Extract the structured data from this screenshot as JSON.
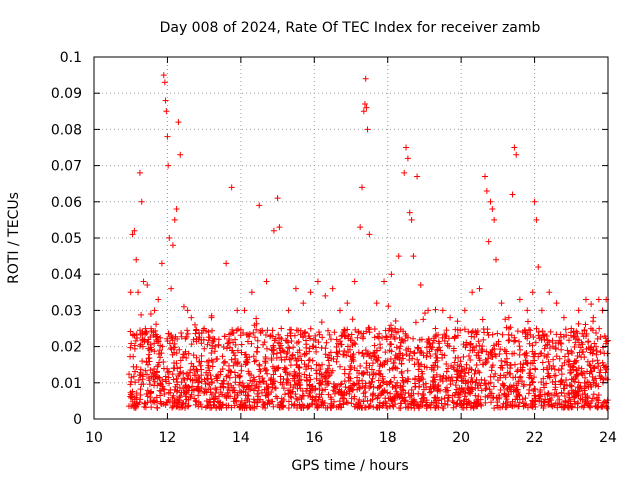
{
  "chart_data": {
    "type": "scatter",
    "title": "Day 008 of 2024, Rate Of TEC Index for receiver zamb",
    "xlabel": "GPS time / hours",
    "ylabel": "ROTI / TECUs",
    "xlim": [
      10,
      24
    ],
    "ylim": [
      0,
      0.1
    ],
    "grid": true,
    "marker": "plus",
    "colors": {
      "marker": "#ff0000",
      "axis": "#000000",
      "grid": "#a0a0a0"
    },
    "x_ticks": [
      "10",
      "12",
      "14",
      "16",
      "18",
      "20",
      "22",
      "24"
    ],
    "y_ticks": [
      "0",
      "0.01",
      "0.02",
      "0.03",
      "0.04",
      "0.05",
      "0.06",
      "0.07",
      "0.08",
      "0.09",
      "0.1"
    ],
    "series": [
      {
        "name": "ROTI",
        "x": [
          11.0,
          11.05,
          11.1,
          11.15,
          11.2,
          11.25,
          11.3,
          11.35,
          11.45,
          11.55,
          11.65,
          11.75,
          11.85,
          11.9,
          11.93,
          11.95,
          11.97,
          12.0,
          12.02,
          12.05,
          12.1,
          12.15,
          12.2,
          12.25,
          12.3,
          12.35,
          12.45,
          12.55,
          12.65,
          12.75,
          12.85,
          13.0,
          13.2,
          13.4,
          13.6,
          13.75,
          13.9,
          14.1,
          14.3,
          14.5,
          14.7,
          14.9,
          15.0,
          15.05,
          15.1,
          15.3,
          15.5,
          15.7,
          15.9,
          16.1,
          16.3,
          16.5,
          16.7,
          16.9,
          17.1,
          17.25,
          17.3,
          17.35,
          17.38,
          17.4,
          17.42,
          17.45,
          17.5,
          17.7,
          17.9,
          18.1,
          18.3,
          18.45,
          18.5,
          18.55,
          18.6,
          18.65,
          18.7,
          18.8,
          18.9,
          19.1,
          19.3,
          19.5,
          19.7,
          19.9,
          20.1,
          20.3,
          20.5,
          20.65,
          20.7,
          20.75,
          20.8,
          20.85,
          20.9,
          20.95,
          21.1,
          21.3,
          21.4,
          21.45,
          21.5,
          21.6,
          21.8,
          21.95,
          22.0,
          22.05,
          22.1,
          22.2,
          22.4,
          22.6,
          22.8,
          23.0,
          23.2,
          23.4,
          23.6,
          23.75,
          23.85,
          23.95
        ],
        "y": [
          0.035,
          0.051,
          0.052,
          0.044,
          0.035,
          0.068,
          0.06,
          0.038,
          0.037,
          0.029,
          0.03,
          0.033,
          0.043,
          0.095,
          0.093,
          0.088,
          0.085,
          0.078,
          0.07,
          0.05,
          0.036,
          0.048,
          0.055,
          0.058,
          0.082,
          0.073,
          0.031,
          0.03,
          0.028,
          0.026,
          0.022,
          0.025,
          0.028,
          0.022,
          0.043,
          0.064,
          0.03,
          0.03,
          0.035,
          0.059,
          0.038,
          0.052,
          0.061,
          0.053,
          0.025,
          0.03,
          0.036,
          0.032,
          0.035,
          0.038,
          0.034,
          0.036,
          0.03,
          0.032,
          0.038,
          0.053,
          0.064,
          0.085,
          0.087,
          0.094,
          0.086,
          0.08,
          0.051,
          0.032,
          0.038,
          0.04,
          0.045,
          0.068,
          0.075,
          0.072,
          0.057,
          0.055,
          0.045,
          0.067,
          0.037,
          0.03,
          0.025,
          0.03,
          0.028,
          0.027,
          0.03,
          0.035,
          0.036,
          0.067,
          0.063,
          0.049,
          0.06,
          0.058,
          0.055,
          0.044,
          0.032,
          0.028,
          0.062,
          0.075,
          0.073,
          0.033,
          0.03,
          0.035,
          0.06,
          0.055,
          0.042,
          0.03,
          0.035,
          0.032,
          0.028,
          0.025,
          0.03,
          0.033,
          0.028,
          0.033,
          0.03,
          0.033
        ]
      }
    ],
    "background_band": {
      "x_start": 10.95,
      "x_end": 24.0,
      "y_low": 0.003,
      "y_high": 0.025,
      "count": 2400
    }
  }
}
